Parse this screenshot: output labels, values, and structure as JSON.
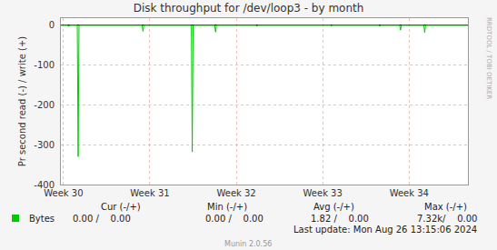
{
  "chart_data": {
    "type": "line",
    "title": "Disk throughput for /dev/loop3 - by month",
    "y_label": "Pr second read (-) / write (+)",
    "x": [
      29.97,
      30.05,
      30.06,
      30.07,
      30.16,
      30.17,
      30.18,
      30.91,
      30.92,
      30.93,
      31.48,
      31.49,
      31.5,
      31.75,
      31.76,
      31.77,
      32.23,
      32.24,
      32.25,
      33.09,
      33.1,
      33.11,
      33.65,
      33.66,
      33.67,
      33.89,
      33.9,
      33.91,
      34.17,
      34.18,
      34.19,
      34.68
    ],
    "series": [
      {
        "name": "Bytes",
        "color": "#00cc00",
        "values": [
          0,
          0,
          -3,
          0,
          0,
          -330,
          0,
          0,
          -15,
          0,
          0,
          -318,
          0,
          0,
          -17,
          0,
          0,
          -2,
          0,
          0,
          -2,
          0,
          0,
          -2,
          0,
          0,
          -12,
          0,
          0,
          -18,
          0,
          0
        ]
      }
    ],
    "xlim": [
      29.97,
      34.68
    ],
    "xticks": [
      {
        "value": 30,
        "label": "Week 30"
      },
      {
        "value": 31,
        "label": "Week 31"
      },
      {
        "value": 32,
        "label": "Week 32"
      },
      {
        "value": 33,
        "label": "Week 33"
      },
      {
        "value": 34,
        "label": "Week 34"
      }
    ],
    "ylim": [
      -400,
      18
    ],
    "yticks": [
      -400,
      -300,
      -200,
      -100,
      0
    ],
    "grid": true,
    "legend_table": {
      "headers": [
        "Cur (-/+)",
        "Min (-/+)",
        "Avg (-/+)",
        "Max (-/+)"
      ],
      "cells": [
        "0.00 /    0.00",
        "0.00 /    0.00",
        "1.82 /    0.00",
        "7.32k/    0.00"
      ]
    },
    "footer": "Last update: Mon Aug 26 13:15:06 2024",
    "credit": "Munin 2.0.56",
    "watermark": "RRDTOOL / TOBI OETIKER"
  }
}
